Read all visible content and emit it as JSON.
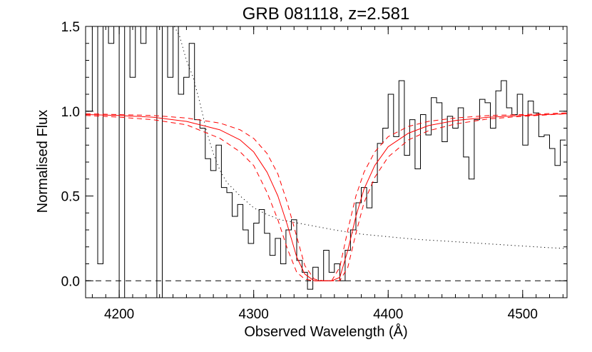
{
  "chart_data": {
    "type": "line",
    "title": "GRB 081118, z=2.581",
    "xlabel": "Observed Wavelength (Å)",
    "ylabel": "Normalised Flux",
    "xlim": [
      4175,
      4533
    ],
    "ylim": [
      -0.1,
      1.5
    ],
    "xticks": [
      4200,
      4300,
      4400,
      4500
    ],
    "yticks": [
      0.0,
      0.5,
      1.0,
      1.5
    ],
    "x_minor_step": 10,
    "y_minor_step": 0.1,
    "grid": false,
    "legend": "none",
    "colors": {
      "data": "#000000",
      "model": "#ff0000",
      "axes": "#000000"
    },
    "reference_line": {
      "y": 0.0,
      "style": "dashed"
    },
    "series": [
      {
        "style": "histogram",
        "color": "#000000",
        "x": [
          4178,
          4182,
          4186,
          4190,
          4194,
          4198,
          4202,
          4206,
          4210,
          4214,
          4218,
          4222,
          4226,
          4230,
          4234,
          4238,
          4242,
          4246,
          4250,
          4254,
          4258,
          4262,
          4266,
          4270,
          4274,
          4278,
          4282,
          4286,
          4290,
          4294,
          4298,
          4302,
          4306,
          4310,
          4314,
          4318,
          4322,
          4326,
          4330,
          4334,
          4338,
          4342,
          4346,
          4350,
          4354,
          4358,
          4362,
          4366,
          4370,
          4374,
          4378,
          4382,
          4386,
          4390,
          4394,
          4398,
          4402,
          4406,
          4410,
          4414,
          4418,
          4422,
          4426,
          4430,
          4434,
          4438,
          4442,
          4446,
          4450,
          4454,
          4458,
          4462,
          4466,
          4470,
          4474,
          4478,
          4482,
          4486,
          4490,
          4494,
          4498,
          4502,
          4506,
          4510,
          4514,
          4518,
          4522,
          4526,
          4530
        ],
        "y": [
          1.0,
          2.0,
          0.1,
          1.8,
          1.4,
          2.0,
          -0.2,
          1.8,
          1.2,
          1.6,
          1.4,
          1.9,
          1.7,
          -0.2,
          1.6,
          1.2,
          1.5,
          1.1,
          1.2,
          1.4,
          0.95,
          0.9,
          0.72,
          0.65,
          0.8,
          0.55,
          0.52,
          0.38,
          0.45,
          0.3,
          0.22,
          0.34,
          0.42,
          0.28,
          0.15,
          0.25,
          0.1,
          0.3,
          0.36,
          0.12,
          0.05,
          -0.05,
          0.08,
          0.0,
          0.18,
          0.05,
          0.1,
          0.0,
          0.18,
          0.3,
          0.46,
          0.55,
          0.43,
          0.58,
          0.81,
          0.9,
          1.1,
          0.85,
          1.18,
          0.74,
          0.95,
          0.66,
          0.98,
          0.86,
          1.08,
          1.05,
          0.82,
          0.97,
          0.9,
          1.02,
          0.73,
          0.6,
          0.95,
          1.07,
          1.05,
          0.9,
          1.12,
          1.18,
          1.02,
          0.98,
          1.1,
          0.8,
          1.06,
          0.99,
          0.85,
          0.86,
          0.78,
          0.68,
          0.83
        ]
      },
      {
        "style": "dotted",
        "color": "#000000",
        "x": [
          4241,
          4245,
          4250,
          4255,
          4260,
          4265,
          4270,
          4275,
          4280,
          4290,
          4300,
          4310,
          4320,
          4340,
          4360,
          4380,
          4400,
          4420,
          4440,
          4460,
          4480,
          4500,
          4520,
          4533
        ],
        "y": [
          1.5,
          1.44,
          1.3,
          1.2,
          1.05,
          0.88,
          0.75,
          0.65,
          0.58,
          0.5,
          0.43,
          0.39,
          0.36,
          0.33,
          0.3,
          0.275,
          0.26,
          0.245,
          0.235,
          0.225,
          0.215,
          0.205,
          0.195,
          0.19
        ]
      },
      {
        "style": "solid",
        "color": "#ff0000",
        "x": [
          4175,
          4200,
          4225,
          4250,
          4275,
          4290,
          4300,
          4310,
          4318,
          4325,
          4332,
          4338,
          4345,
          4352,
          4358,
          4364,
          4370,
          4376,
          4382,
          4390,
          4400,
          4415,
          4430,
          4450,
          4475,
          4500,
          4533
        ],
        "y": [
          0.98,
          0.975,
          0.965,
          0.94,
          0.89,
          0.83,
          0.76,
          0.64,
          0.5,
          0.33,
          0.14,
          0.04,
          0.0,
          0.0,
          0.0,
          0.02,
          0.18,
          0.38,
          0.54,
          0.68,
          0.79,
          0.87,
          0.915,
          0.945,
          0.965,
          0.975,
          0.985
        ]
      },
      {
        "style": "dashed",
        "color": "#ff0000",
        "x": [
          4175,
          4200,
          4225,
          4250,
          4275,
          4290,
          4300,
          4310,
          4318,
          4325,
          4332,
          4338,
          4345,
          4352,
          4358,
          4364,
          4370,
          4376,
          4382,
          4390,
          4400,
          4415,
          4430,
          4450,
          4475,
          4500,
          4533
        ],
        "y": [
          0.985,
          0.98,
          0.975,
          0.96,
          0.93,
          0.89,
          0.84,
          0.75,
          0.63,
          0.46,
          0.26,
          0.09,
          0.01,
          0.0,
          0.0,
          0.0,
          0.08,
          0.28,
          0.46,
          0.61,
          0.73,
          0.83,
          0.885,
          0.925,
          0.955,
          0.97,
          0.985
        ]
      },
      {
        "style": "dashed",
        "color": "#ff0000",
        "x": [
          4175,
          4200,
          4225,
          4250,
          4275,
          4290,
          4300,
          4310,
          4318,
          4325,
          4332,
          4338,
          4345,
          4352,
          4358,
          4364,
          4370,
          4376,
          4382,
          4390,
          4400,
          4415,
          4430,
          4450,
          4475,
          4500,
          4533
        ],
        "y": [
          0.975,
          0.965,
          0.95,
          0.92,
          0.84,
          0.76,
          0.68,
          0.52,
          0.36,
          0.19,
          0.05,
          0.01,
          0.0,
          0.0,
          0.0,
          0.08,
          0.3,
          0.5,
          0.64,
          0.76,
          0.85,
          0.91,
          0.94,
          0.96,
          0.975,
          0.98,
          0.99
        ]
      }
    ]
  }
}
